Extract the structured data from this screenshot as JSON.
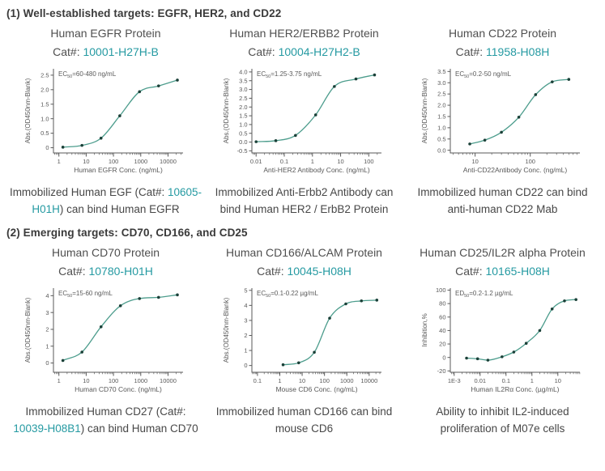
{
  "colors": {
    "teal_link": "#259aa2",
    "curve": "#4d9d8d",
    "point": "#1b4038",
    "axis": "#5a5a5a",
    "tick_text": "#585858",
    "annotation_text": "#5a5a5a",
    "heading_text": "#3a3a3a",
    "body_text": "#4f4f4f"
  },
  "sections": [
    {
      "heading": "(1) Well-established targets: EGFR, HER2, and CD22",
      "figures": [
        {
          "title": "Human EGFR Protein",
          "cat_label": "Cat#:",
          "cat_number": "10001-H27H-B",
          "chart_index": 0,
          "caption_segments": [
            {
              "text": "Immobilized Human EGF (Cat#: ",
              "teal": false
            },
            {
              "text": "10605-H01H",
              "teal": true
            },
            {
              "text": ") can bind Human EGFR",
              "teal": false
            }
          ]
        },
        {
          "title": "Human HER2/ERBB2 Protein",
          "cat_label": "Cat#:",
          "cat_number": "10004-H27H2-B",
          "chart_index": 1,
          "caption_segments": [
            {
              "text": "Immobilized Anti-Erbb2 Antibody can bind Human HER2 / ErbB2 Protein",
              "teal": false
            }
          ]
        },
        {
          "title": "Human CD22 Protein",
          "cat_label": "Cat#:",
          "cat_number": "11958-H08H",
          "chart_index": 2,
          "caption_segments": [
            {
              "text": "Immobilized human CD22 can bind anti-human CD22 Mab",
              "teal": false
            }
          ]
        }
      ]
    },
    {
      "heading": "(2) Emerging targets: CD70, CD166, and CD25",
      "figures": [
        {
          "title": "Human CD70 Protein",
          "cat_label": "Cat#:",
          "cat_number": "10780-H01H",
          "chart_index": 3,
          "caption_segments": [
            {
              "text": "Immobilized Human CD27 (Cat#: ",
              "teal": false
            },
            {
              "text": "10039-H08B1",
              "teal": true
            },
            {
              "text": ") can bind Human CD70",
              "teal": false
            }
          ]
        },
        {
          "title": "Human CD166/ALCAM Protein",
          "cat_label": "Cat#:",
          "cat_number": "10045-H08H",
          "chart_index": 4,
          "caption_segments": [
            {
              "text": "Immobilized human CD166 can bind mouse CD6",
              "teal": false
            }
          ]
        },
        {
          "title": "Human CD25/IL2R alpha Protein",
          "cat_label": "Cat#:",
          "cat_number": "10165-H08H",
          "chart_index": 5,
          "caption_segments": [
            {
              "text": "Ability to inhibit IL2-induced proliferation of M07e cells",
              "teal": false
            }
          ]
        }
      ]
    }
  ],
  "chart_data": [
    {
      "type": "line",
      "title": "Human EGFR Protein",
      "annotation": {
        "prefix": "EC",
        "sub": "50",
        "value": "=60-480 ng/mL"
      },
      "xlabel": "Human EGFR Conc. (ng/mL)",
      "ylabel": "Abs.(OD450nm-Blank)",
      "x_scale": "log",
      "x_ticks": [
        1,
        10,
        100,
        1000,
        10000
      ],
      "x_tick_labels": [
        "1",
        "10",
        "100",
        "1000",
        "10000"
      ],
      "xlim_log": [
        -0.2,
        4.55
      ],
      "y_ticks": [
        0,
        0.5,
        1.0,
        1.5,
        2.0,
        2.5
      ],
      "y_tick_labels": [
        "0",
        "0.5",
        "1.0",
        "1.5",
        "2.0",
        "2.5"
      ],
      "ylim": [
        -0.18,
        2.72
      ],
      "points": [
        [
          1.4,
          0.02
        ],
        [
          7,
          0.08
        ],
        [
          35,
          0.33
        ],
        [
          170,
          1.1
        ],
        [
          900,
          1.93
        ],
        [
          4500,
          2.13
        ],
        [
          22000,
          2.33
        ]
      ]
    },
    {
      "type": "line",
      "title": "Human HER2/ERBB2 Protein",
      "annotation": {
        "prefix": "EC",
        "sub": "50",
        "value": "=1.25-3.75 ng/mL"
      },
      "xlabel": "Anti-HER2 Antibody Conc. (ng/mL)",
      "ylabel": "Abs.(OD450nm-Blank)",
      "x_scale": "log",
      "x_ticks": [
        0.01,
        0.1,
        1,
        10,
        100
      ],
      "x_tick_labels": [
        "0.01",
        "0.1",
        "1",
        "10",
        "100"
      ],
      "xlim_log": [
        -2.15,
        2.45
      ],
      "y_ticks": [
        -0.5,
        0.0,
        0.5,
        1.0,
        1.5,
        2.0,
        2.5,
        3.0,
        3.5,
        4.0
      ],
      "y_tick_labels": [
        "-0.5",
        "0.0",
        "0.5",
        "1.0",
        "1.5",
        "2.0",
        "2.5",
        "3.0",
        "3.5",
        "4.0"
      ],
      "ylim": [
        -0.62,
        4.18
      ],
      "points": [
        [
          0.01,
          0.02
        ],
        [
          0.05,
          0.08
        ],
        [
          0.25,
          0.38
        ],
        [
          1.3,
          1.55
        ],
        [
          6,
          3.17
        ],
        [
          35,
          3.6
        ],
        [
          160,
          3.83
        ]
      ]
    },
    {
      "type": "line",
      "title": "Human CD22 Protein",
      "annotation": {
        "prefix": "EC",
        "sub": "50",
        "value": "=0.2-50 ng/mL"
      },
      "xlabel": "Anti-CD22Antibody Conc. (ng/mL)",
      "ylabel": "Abs.(OD450nm-Blank)",
      "x_scale": "log",
      "x_ticks": [
        10,
        100
      ],
      "x_tick_labels": [
        "10",
        "100"
      ],
      "xlim_log": [
        0.55,
        2.9
      ],
      "y_ticks": [
        0.0,
        0.5,
        1.0,
        1.5,
        2.0,
        2.5,
        3.0,
        3.5
      ],
      "y_tick_labels": [
        "0.0",
        "0.5",
        "1.0",
        "1.5",
        "2.0",
        "2.5",
        "3.0",
        "3.5"
      ],
      "ylim": [
        -0.12,
        3.62
      ],
      "points": [
        [
          8,
          0.28
        ],
        [
          15,
          0.45
        ],
        [
          30,
          0.8
        ],
        [
          62,
          1.47
        ],
        [
          125,
          2.47
        ],
        [
          250,
          3.04
        ],
        [
          500,
          3.15
        ]
      ]
    },
    {
      "type": "line",
      "title": "Human CD70 Protein",
      "annotation": {
        "prefix": "EC",
        "sub": "50",
        "value": "=15-60 ng/mL"
      },
      "xlabel": "Human CD70 Conc. (ng/mL)",
      "ylabel": "Abs.(OD450nm-Blank)",
      "x_scale": "log",
      "x_ticks": [
        1,
        10,
        100,
        1000,
        10000
      ],
      "x_tick_labels": [
        "1",
        "10",
        "100",
        "1000",
        "10000"
      ],
      "xlim_log": [
        -0.2,
        4.55
      ],
      "y_ticks": [
        0,
        1,
        2,
        3,
        4
      ],
      "y_tick_labels": [
        "0",
        "1",
        "2",
        "3",
        "4"
      ],
      "ylim": [
        -0.55,
        4.45
      ],
      "points": [
        [
          1.4,
          0.15
        ],
        [
          7,
          0.65
        ],
        [
          35,
          2.15
        ],
        [
          180,
          3.4
        ],
        [
          900,
          3.83
        ],
        [
          4500,
          3.9
        ],
        [
          22000,
          4.05
        ]
      ]
    },
    {
      "type": "line",
      "title": "Human CD166/ALCAM Protein",
      "annotation": {
        "prefix": "EC",
        "sub": "50",
        "value": "=0.1-0.22 µg/mL"
      },
      "xlabel": "Mouse CD6 Conc. (ng/mL)",
      "ylabel": "Abs.(OD450nm-Blank)",
      "x_scale": "log",
      "x_ticks": [
        0.1,
        1,
        10,
        100,
        1000,
        10000
      ],
      "x_tick_labels": [
        "0.1",
        "1",
        "10",
        "100",
        "1000",
        "10000"
      ],
      "xlim_log": [
        -1.25,
        4.55
      ],
      "y_ticks": [
        0,
        1,
        2,
        3,
        4,
        5
      ],
      "y_tick_labels": [
        "0",
        "1",
        "2",
        "3",
        "4",
        "5"
      ],
      "ylim": [
        -0.45,
        5.15
      ],
      "points": [
        [
          1.4,
          0.05
        ],
        [
          7,
          0.18
        ],
        [
          35,
          0.88
        ],
        [
          170,
          3.15
        ],
        [
          900,
          4.1
        ],
        [
          4500,
          4.3
        ],
        [
          22000,
          4.35
        ]
      ]
    },
    {
      "type": "line",
      "title": "Human CD25/IL2R alpha Protein",
      "annotation": {
        "prefix": "ED",
        "sub": "50",
        "value": "=0.2-1.2 µg/mL"
      },
      "xlabel": "Human IL2Rα Conc. (µg/mL)",
      "ylabel": "Inhibition,%",
      "x_scale": "log",
      "x_ticks": [
        0.001,
        0.01,
        0.1,
        1,
        10
      ],
      "x_tick_labels": [
        "1E-3",
        "0.01",
        "0.1",
        "1",
        "10"
      ],
      "xlim_log": [
        -3.15,
        1.85
      ],
      "y_ticks": [
        -20,
        0,
        20,
        40,
        60,
        80,
        100
      ],
      "y_tick_labels": [
        "-20",
        "0",
        "20",
        "40",
        "60",
        "80",
        "100"
      ],
      "ylim": [
        -22,
        103
      ],
      "points": [
        [
          0.003,
          -1
        ],
        [
          0.008,
          -2
        ],
        [
          0.02,
          -4
        ],
        [
          0.07,
          1
        ],
        [
          0.2,
          8
        ],
        [
          0.6,
          21
        ],
        [
          2,
          40
        ],
        [
          6,
          72
        ],
        [
          18,
          84
        ],
        [
          50,
          86
        ]
      ]
    }
  ]
}
